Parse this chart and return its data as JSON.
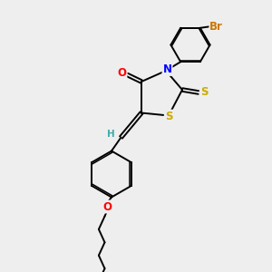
{
  "bg_color": "#eeeeee",
  "bond_color": "#000000",
  "atom_colors": {
    "O": "#ff0000",
    "N": "#0000ff",
    "S": "#ccaa00",
    "Br": "#cc7700",
    "H": "#44aaaa",
    "C": "#000000"
  },
  "bond_width": 1.4,
  "font_size": 8.5
}
